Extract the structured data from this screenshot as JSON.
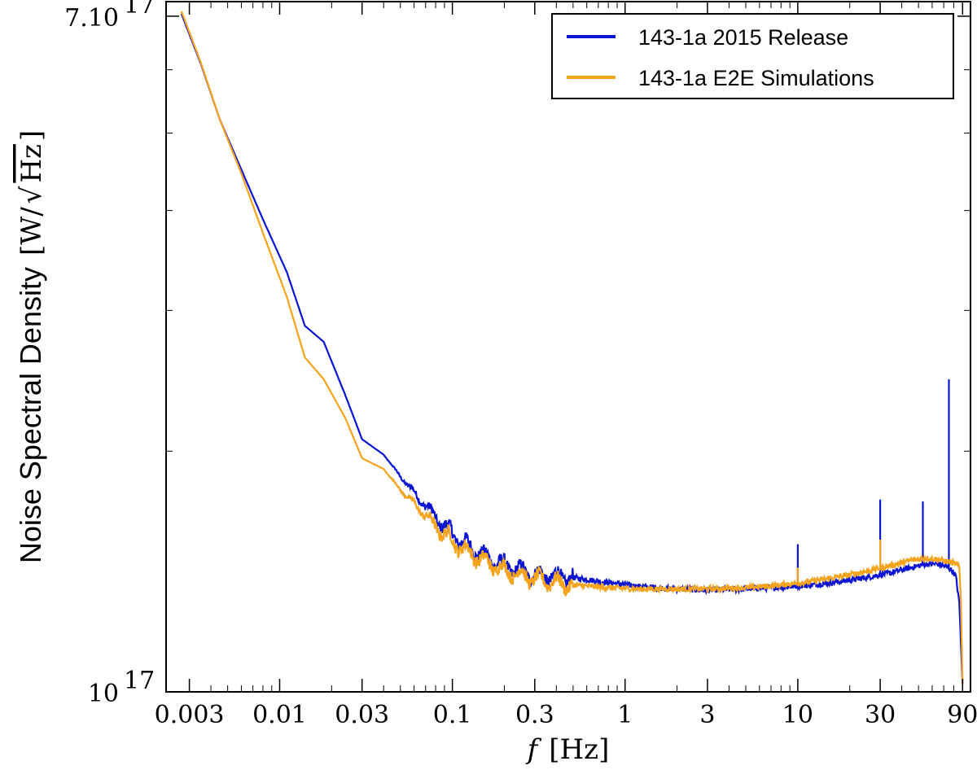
{
  "chart_data": {
    "type": "line",
    "title": "",
    "xlabel_italic": "f",
    "xlabel_unit": "[Hz]",
    "ylabel_main": "Noise Spectral Density",
    "ylabel_unit_open": "[W/",
    "ylabel_unit_sqrt": "√",
    "ylabel_unit_inner": "Hz",
    "ylabel_unit_close": "]",
    "x_scale": "log",
    "y_scale": "log",
    "xlim": [
      0.0022,
      100
    ],
    "ylim": [
      1e-17,
      7.3e-17
    ],
    "x_ticks": [
      {
        "value": 0.003,
        "label": "0.003"
      },
      {
        "value": 0.01,
        "label": "0.01"
      },
      {
        "value": 0.03,
        "label": "0.03"
      },
      {
        "value": 0.1,
        "label": "0.1"
      },
      {
        "value": 0.3,
        "label": "0.3"
      },
      {
        "value": 1,
        "label": "1"
      },
      {
        "value": 3,
        "label": "3"
      },
      {
        "value": 10,
        "label": "10"
      },
      {
        "value": 30,
        "label": "30"
      },
      {
        "value": 90,
        "label": "90"
      }
    ],
    "y_tick_labels": [
      {
        "value": 7e-17,
        "mantissa": "7.10",
        "exponent": "17"
      },
      {
        "value": 1e-17,
        "mantissa": "10",
        "exponent": "17"
      }
    ],
    "y_minor_ticks": [
      2e-17,
      3e-17,
      4e-17,
      5e-17,
      6e-17
    ],
    "legend_position": "top-right",
    "grid": false,
    "series": [
      {
        "name": "143-1a 2015 Release",
        "color": "#0a14d2",
        "points": [
          [
            0.0027,
            7.05e-17
          ],
          [
            0.0035,
            6.1e-17
          ],
          [
            0.0045,
            5.2e-17
          ],
          [
            0.006,
            4.5e-17
          ],
          [
            0.008,
            3.9e-17
          ],
          [
            0.011,
            3.35e-17
          ],
          [
            0.014,
            2.87e-17
          ],
          [
            0.018,
            2.74e-17
          ],
          [
            0.024,
            2.35e-17
          ],
          [
            0.03,
            2.07e-17
          ],
          [
            0.04,
            1.98e-17
          ],
          [
            0.05,
            1.86e-17
          ],
          [
            0.065,
            1.74e-17
          ],
          [
            0.085,
            1.63e-17
          ],
          [
            0.11,
            1.55e-17
          ],
          [
            0.15,
            1.48e-17
          ],
          [
            0.2,
            1.44e-17
          ],
          [
            0.3,
            1.4e-17
          ],
          [
            0.5,
            1.39e-17
          ],
          [
            0.8,
            1.37e-17
          ],
          [
            1.2,
            1.355e-17
          ],
          [
            2,
            1.345e-17
          ],
          [
            3,
            1.34e-17
          ],
          [
            5,
            1.345e-17
          ],
          [
            8,
            1.352e-17
          ],
          [
            12,
            1.36e-17
          ],
          [
            18,
            1.375e-17
          ],
          [
            25,
            1.39e-17
          ],
          [
            35,
            1.41e-17
          ],
          [
            45,
            1.43e-17
          ],
          [
            55,
            1.445e-17
          ],
          [
            65,
            1.445e-17
          ],
          [
            75,
            1.43e-17
          ],
          [
            82,
            1.4e-17
          ],
          [
            86,
            1.3e-17
          ],
          [
            90,
            1.02e-17
          ]
        ],
        "spikes": [
          {
            "x": 10,
            "y": 1.53e-17
          },
          {
            "x": 30,
            "y": 1.74e-17
          },
          {
            "x": 53,
            "y": 1.73e-17
          },
          {
            "x": 75,
            "y": 2.46e-17
          }
        ]
      },
      {
        "name": "143-1a E2E Simulations",
        "color": "#f5a31b",
        "points": [
          [
            0.0027,
            7.1e-17
          ],
          [
            0.0035,
            6.12e-17
          ],
          [
            0.0045,
            5.2e-17
          ],
          [
            0.006,
            4.45e-17
          ],
          [
            0.008,
            3.75e-17
          ],
          [
            0.011,
            3.12e-17
          ],
          [
            0.014,
            2.62e-17
          ],
          [
            0.018,
            2.46e-17
          ],
          [
            0.024,
            2.2e-17
          ],
          [
            0.03,
            1.96e-17
          ],
          [
            0.04,
            1.9e-17
          ],
          [
            0.05,
            1.79e-17
          ],
          [
            0.065,
            1.69e-17
          ],
          [
            0.085,
            1.59e-17
          ],
          [
            0.11,
            1.52e-17
          ],
          [
            0.15,
            1.46e-17
          ],
          [
            0.2,
            1.42e-17
          ],
          [
            0.3,
            1.385e-17
          ],
          [
            0.5,
            1.36e-17
          ],
          [
            0.8,
            1.35e-17
          ],
          [
            1.2,
            1.345e-17
          ],
          [
            2,
            1.345e-17
          ],
          [
            3,
            1.345e-17
          ],
          [
            5,
            1.35e-17
          ],
          [
            8,
            1.36e-17
          ],
          [
            12,
            1.375e-17
          ],
          [
            18,
            1.395e-17
          ],
          [
            25,
            1.415e-17
          ],
          [
            35,
            1.44e-17
          ],
          [
            45,
            1.46e-17
          ],
          [
            55,
            1.47e-17
          ],
          [
            65,
            1.465e-17
          ],
          [
            75,
            1.455e-17
          ],
          [
            82,
            1.445e-17
          ],
          [
            86,
            1.44e-17
          ],
          [
            88,
            1.3e-17
          ],
          [
            90,
            1.02e-17
          ]
        ],
        "spikes": [
          {
            "x": 10,
            "y": 1.43e-17
          },
          {
            "x": 30,
            "y": 1.55e-17
          }
        ]
      }
    ]
  }
}
